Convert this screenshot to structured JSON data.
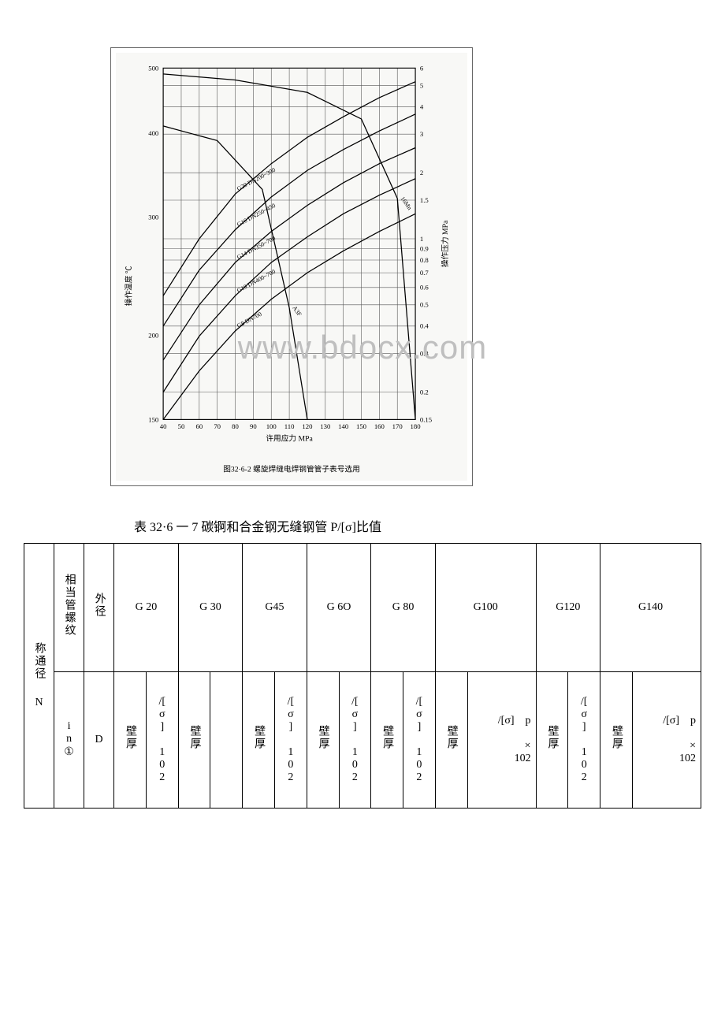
{
  "chart": {
    "type": "line-log",
    "background_color": "#f8f8f6",
    "grid_color": "#555555",
    "axis_color": "#000000",
    "line_color": "#000000",
    "line_width": 1.3,
    "tick_fontsize": 9,
    "label_fontsize": 10,
    "caption": "图32·6-2  螺旋焊缝电焊钢管管子表号选用",
    "x_axis": {
      "label": "许用应力  MPa",
      "ticks": [
        40,
        50,
        60,
        70,
        80,
        90,
        100,
        110,
        120,
        130,
        140,
        150,
        160,
        170,
        180
      ],
      "min": 40,
      "max": 180
    },
    "y_right": {
      "label": "操作压力  MPa",
      "ticks": [
        0.15,
        0.2,
        0.3,
        0.4,
        0.5,
        0.6,
        0.7,
        0.8,
        0.9,
        1.0,
        1.5,
        2.0,
        3.0,
        4.0,
        5.0,
        6.0
      ],
      "min": 0.15,
      "max": 6.0,
      "scale": "log"
    },
    "y_left": {
      "label": "操作温度  ℃",
      "ticks": [
        150,
        200,
        300,
        400,
        500
      ],
      "min": 150,
      "max": 500,
      "scale": "log"
    },
    "series": [
      {
        "name": "G20 DN200~300",
        "label": "G20 DN200~300",
        "x": [
          40,
          60,
          80,
          100,
          120,
          140,
          160,
          180
        ],
        "y": [
          0.55,
          1.0,
          1.6,
          2.2,
          2.9,
          3.6,
          4.4,
          5.2
        ]
      },
      {
        "name": "G16 DN250~450",
        "label": "G16 DN250~450",
        "x": [
          40,
          60,
          80,
          100,
          120,
          140,
          160,
          180
        ],
        "y": [
          0.4,
          0.72,
          1.1,
          1.55,
          2.05,
          2.55,
          3.1,
          3.7
        ]
      },
      {
        "name": "G14 DN350~700",
        "label": "G14 DN350~700",
        "x": [
          40,
          60,
          80,
          100,
          120,
          140,
          160,
          180
        ],
        "y": [
          0.28,
          0.5,
          0.78,
          1.08,
          1.42,
          1.8,
          2.2,
          2.6
        ]
      },
      {
        "name": "G10 DN400~700",
        "label": "G10 DN400~700",
        "x": [
          40,
          60,
          80,
          100,
          120,
          140,
          160,
          180
        ],
        "y": [
          0.2,
          0.36,
          0.55,
          0.78,
          1.02,
          1.3,
          1.58,
          1.88
        ]
      },
      {
        "name": "G8 DN700",
        "label": "G8 DN700",
        "x": [
          40,
          60,
          80,
          100,
          120,
          140,
          160,
          180
        ],
        "y": [
          0.15,
          0.25,
          0.38,
          0.53,
          0.7,
          0.88,
          1.08,
          1.3
        ]
      }
    ],
    "temp_curves": [
      {
        "name": "16Mn",
        "label": "16Mn",
        "x": [
          40,
          80,
          120,
          150,
          170,
          180
        ],
        "t": [
          490,
          480,
          460,
          420,
          320,
          150
        ]
      },
      {
        "name": "A3F",
        "label": "A3F",
        "x": [
          40,
          70,
          95,
          110,
          120
        ],
        "t": [
          410,
          390,
          330,
          220,
          150
        ]
      }
    ]
  },
  "table": {
    "caption": "表 32·6 一 7 碳锕和合金钢无缝钢管 P/[σ]比值",
    "row1_left_heading": "称通径",
    "row1_col2_heading": "相当管螺纹",
    "row1_col3_heading": "外径",
    "g_headers": [
      "G 20",
      "G 30",
      "G45",
      "G 6O",
      "G 80",
      "G100",
      "G120",
      "G140"
    ],
    "row2_col1": "N",
    "row2_col2": "i n ①",
    "row2_col3": "D",
    "sub_wall": "壁厚",
    "sub_ratio_102": "/[σ]102",
    "sub_ratio_p102": "/[σ]    p × 102",
    "ratio_variants": [
      "102",
      "",
      "102",
      "102",
      "102",
      "p102",
      "102",
      "p102"
    ]
  },
  "watermark": "www.bdocx.com"
}
